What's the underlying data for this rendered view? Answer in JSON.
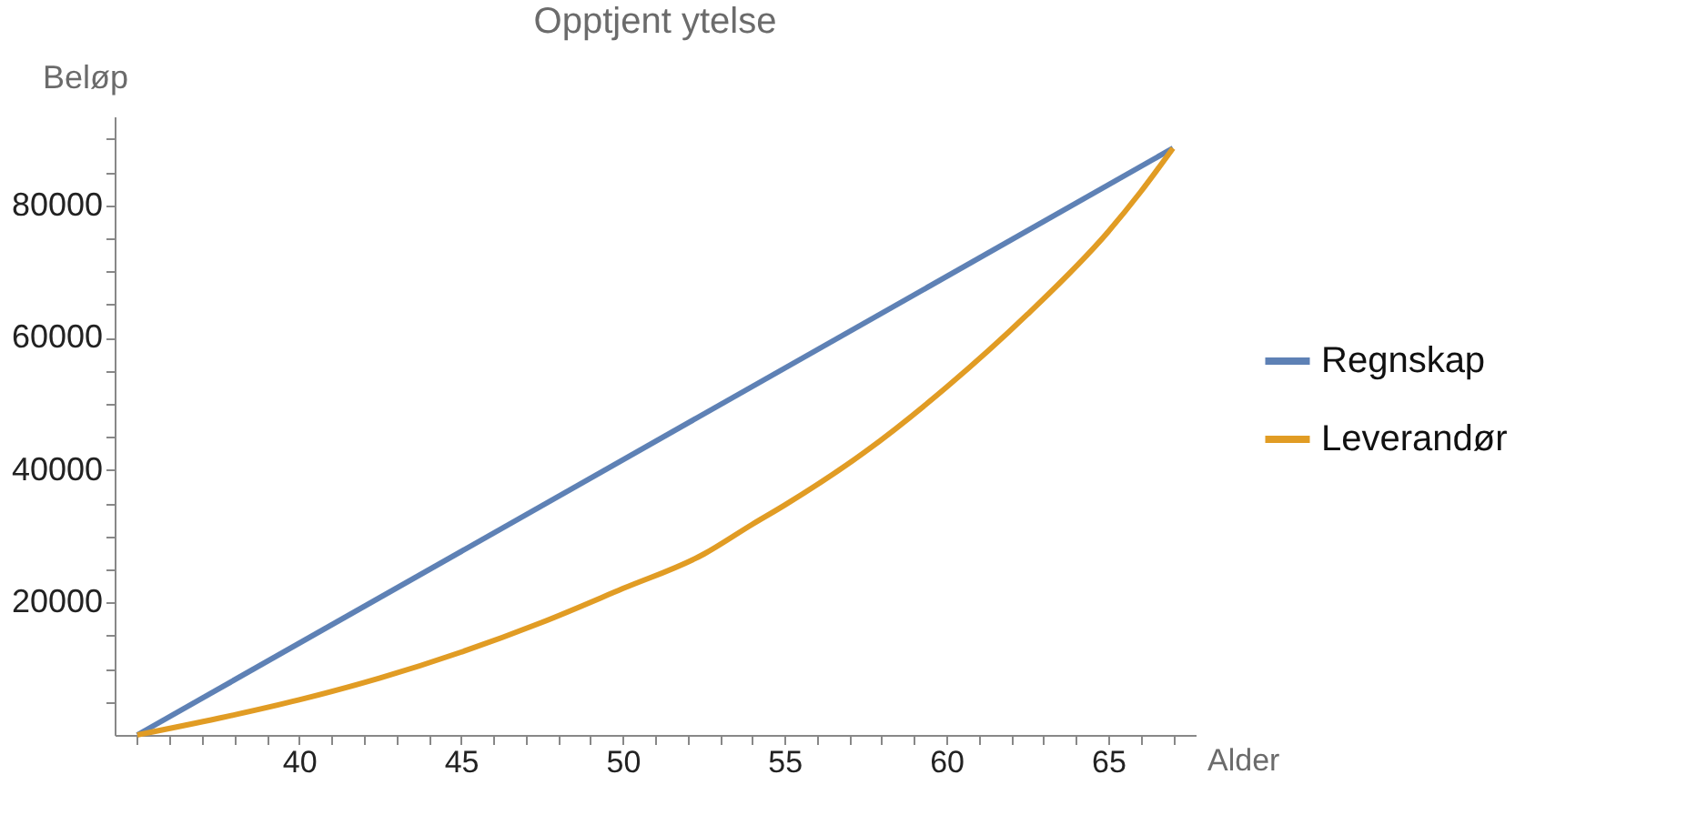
{
  "chart_data": {
    "type": "line",
    "title": "Opptjent ytelse",
    "xlabel": "Alder",
    "ylabel": "Beløp",
    "xlim": [
      34.3,
      67.7
    ],
    "ylim": [
      0,
      93400
    ],
    "xticks": [
      {
        "value": 35,
        "label": null
      },
      {
        "value": 36,
        "label": null
      },
      {
        "value": 37,
        "label": null
      },
      {
        "value": 38,
        "label": null
      },
      {
        "value": 39,
        "label": null
      },
      40,
      {
        "value": 41,
        "label": null
      },
      {
        "value": 42,
        "label": null
      },
      {
        "value": 43,
        "label": null
      },
      {
        "value": 44,
        "label": null
      },
      45,
      {
        "value": 46,
        "label": null
      },
      {
        "value": 47,
        "label": null
      },
      {
        "value": 48,
        "label": null
      },
      {
        "value": 49,
        "label": null
      },
      50,
      {
        "value": 51,
        "label": null
      },
      {
        "value": 52,
        "label": null
      },
      {
        "value": 53,
        "label": null
      },
      {
        "value": 54,
        "label": null
      },
      55,
      {
        "value": 56,
        "label": null
      },
      {
        "value": 57,
        "label": null
      },
      {
        "value": 58,
        "label": null
      },
      {
        "value": 59,
        "label": null
      },
      60,
      {
        "value": 61,
        "label": null
      },
      {
        "value": 62,
        "label": null
      },
      {
        "value": 63,
        "label": null
      },
      {
        "value": 64,
        "label": null
      },
      65,
      {
        "value": 66,
        "label": null
      },
      {
        "value": 67,
        "label": null
      }
    ],
    "yticks": [
      {
        "value": 5000,
        "label": null
      },
      {
        "value": 10000,
        "label": null
      },
      {
        "value": 15000,
        "label": null
      },
      20000,
      {
        "value": 25000,
        "label": null
      },
      {
        "value": 30000,
        "label": null
      },
      {
        "value": 35000,
        "label": null
      },
      40000,
      {
        "value": 45000,
        "label": null
      },
      {
        "value": 50000,
        "label": null
      },
      {
        "value": 55000,
        "label": null
      },
      60000,
      {
        "value": 65000,
        "label": null
      },
      {
        "value": 70000,
        "label": null
      },
      {
        "value": 75000,
        "label": null
      },
      80000,
      {
        "value": 85000,
        "label": null
      },
      {
        "value": 90000,
        "label": null
      }
    ],
    "grid": false,
    "legend": "right",
    "marker": "none",
    "line_style": "solid",
    "series": [
      {
        "name": "Regnskap",
        "color": "#5e81b5",
        "x": [
          35,
          67
        ],
        "values": [
          0,
          88600
        ]
      },
      {
        "name": "Leverandør",
        "color": "#e19c24",
        "x": [
          35,
          37.5,
          40,
          42.5,
          45,
          47.5,
          50,
          52.5,
          54,
          55,
          57.5,
          60,
          62.5,
          65,
          66,
          67
        ],
        "values": [
          0,
          2500,
          5300,
          8600,
          12500,
          17000,
          22100,
          27300,
          31800,
          34700,
          42800,
          52500,
          63500,
          76000,
          82000,
          88600
        ]
      }
    ]
  }
}
